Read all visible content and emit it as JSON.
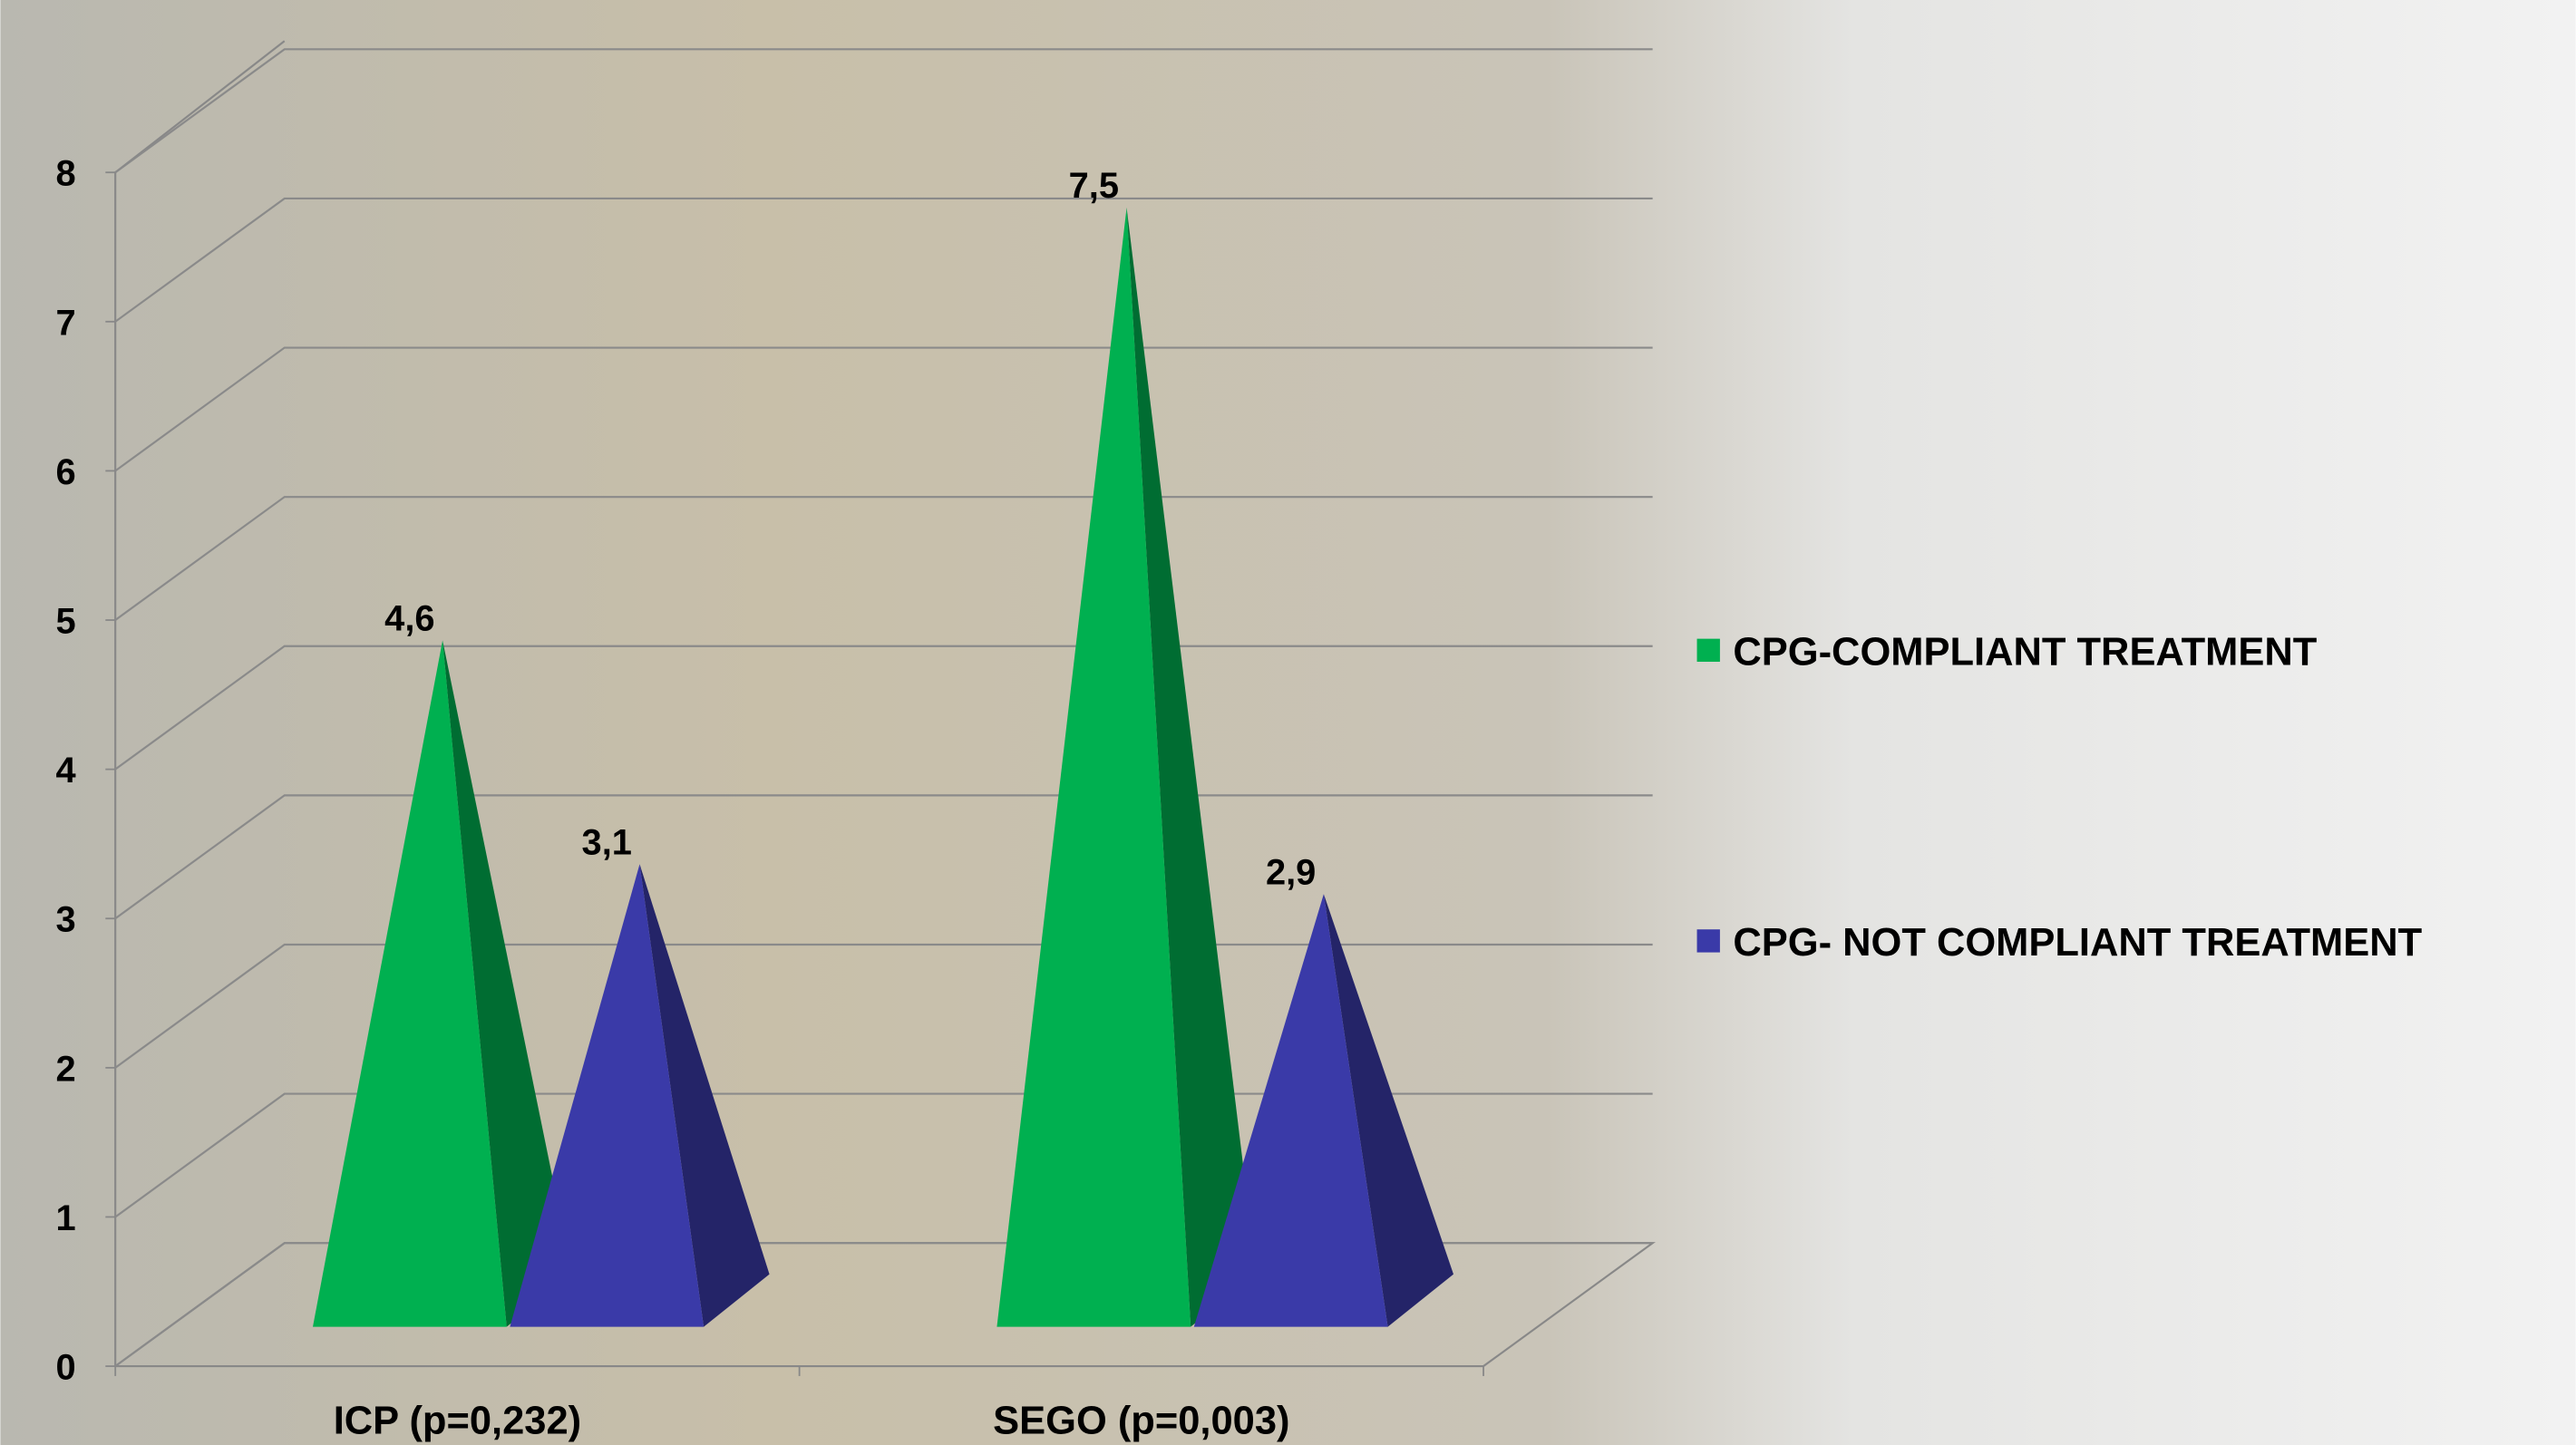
{
  "chart_data": {
    "type": "pyramid3d",
    "categories": [
      "ICP (p=0,232)",
      "SEGO (p=0,003)"
    ],
    "series": [
      {
        "name": "CPG-COMPLIANT TREATMENT",
        "color": "#00b050",
        "values": [
          4.6,
          7.5
        ],
        "value_labels": [
          "4,6",
          "7,5"
        ]
      },
      {
        "name": "CPG- NOT COMPLIANT TREATMENT",
        "color": "#3a3aa8",
        "values": [
          3.1,
          2.9
        ],
        "value_labels": [
          "3,1",
          "2,9"
        ]
      }
    ],
    "ylim": [
      0,
      8
    ],
    "yticks": [
      0,
      1,
      2,
      3,
      4,
      5,
      6,
      7,
      8
    ],
    "grid": true,
    "legend": "right"
  }
}
